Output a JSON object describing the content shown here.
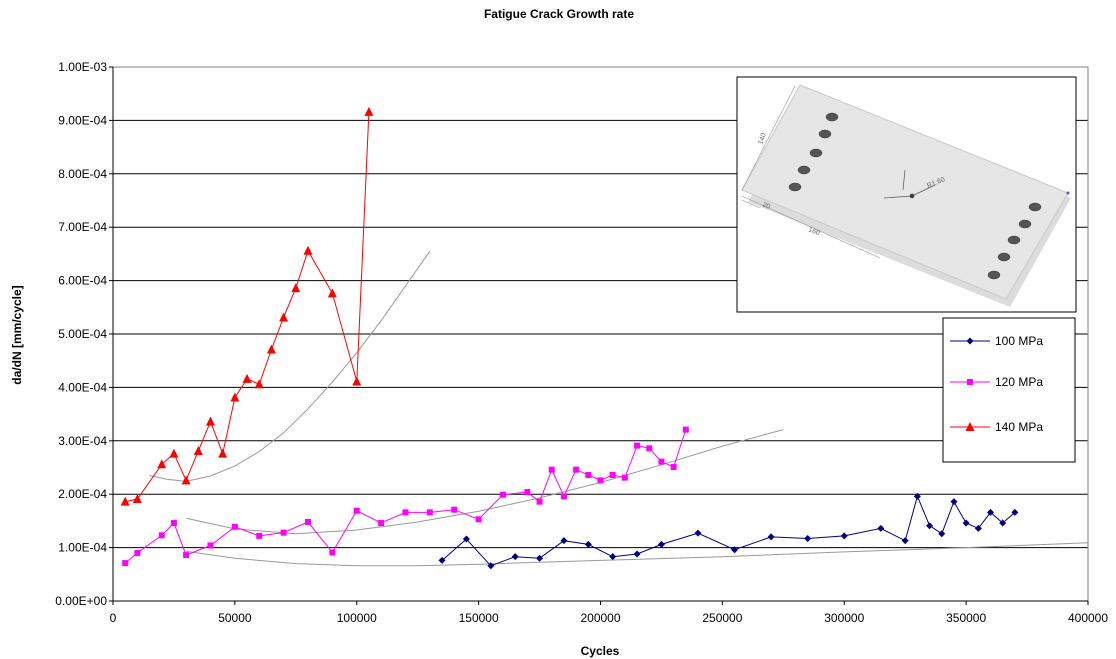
{
  "chart_data": {
    "type": "line",
    "title": "Fatigue Crack Growth rate",
    "xlabel": "Cycles",
    "ylabel": "da/dN [mm/cycle]",
    "xlim": [
      0,
      400000
    ],
    "ylim": [
      0,
      0.001
    ],
    "x_ticks": [
      0,
      50000,
      100000,
      150000,
      200000,
      250000,
      300000,
      350000,
      400000
    ],
    "x_tick_labels": [
      "0",
      "50000",
      "100000",
      "150000",
      "200000",
      "250000",
      "300000",
      "350000",
      "400000"
    ],
    "y_ticks": [
      0,
      0.0001,
      0.0002,
      0.0003,
      0.0004,
      0.0005,
      0.0006,
      0.0007,
      0.0008,
      0.0009,
      0.001
    ],
    "y_tick_labels": [
      "0.00E+00",
      "1.00E-04",
      "2.00E-04",
      "3.00E-04",
      "4.00E-04",
      "5.00E-04",
      "6.00E-04",
      "7.00E-04",
      "8.00E-04",
      "9.00E-04",
      "1.00E-03"
    ],
    "grid": "horizontal",
    "legend_position": "right",
    "series": [
      {
        "name": "100 MPa",
        "color": "#000080",
        "marker": "diamond",
        "points": [
          [
            135000,
            7.6e-05
          ],
          [
            145000,
            0.000116
          ],
          [
            155000,
            6.6e-05
          ],
          [
            165000,
            8.3e-05
          ],
          [
            175000,
            8e-05
          ],
          [
            185000,
            0.000113
          ],
          [
            195000,
            0.000106
          ],
          [
            205000,
            8.3e-05
          ],
          [
            215000,
            8.8e-05
          ],
          [
            225000,
            0.000106
          ],
          [
            240000,
            0.000127
          ],
          [
            255000,
            9.6e-05
          ],
          [
            270000,
            0.00012
          ],
          [
            285000,
            0.000117
          ],
          [
            300000,
            0.000122
          ],
          [
            315000,
            0.000136
          ],
          [
            325000,
            0.000113
          ],
          [
            330000,
            0.000196
          ],
          [
            335000,
            0.000141
          ],
          [
            340000,
            0.000126
          ],
          [
            345000,
            0.000186
          ],
          [
            350000,
            0.000146
          ],
          [
            355000,
            0.000136
          ],
          [
            360000,
            0.000166
          ],
          [
            365000,
            0.000146
          ],
          [
            370000,
            0.000166
          ]
        ]
      },
      {
        "name": "120 MPa",
        "color": "#ff00ff",
        "marker": "square",
        "points": [
          [
            5000,
            7.1e-05
          ],
          [
            10000,
            9e-05
          ],
          [
            20000,
            0.000123
          ],
          [
            25000,
            0.000146
          ],
          [
            30000,
            8.6e-05
          ],
          [
            40000,
            0.000104
          ],
          [
            50000,
            0.000139
          ],
          [
            60000,
            0.000122
          ],
          [
            70000,
            0.000128
          ],
          [
            80000,
            0.000148
          ],
          [
            90000,
            9.1e-05
          ],
          [
            100000,
            0.000169
          ],
          [
            110000,
            0.000146
          ],
          [
            120000,
            0.000166
          ],
          [
            130000,
            0.000166
          ],
          [
            140000,
            0.000171
          ],
          [
            150000,
            0.000153
          ],
          [
            160000,
            0.000199
          ],
          [
            170000,
            0.000204
          ],
          [
            175000,
            0.000186
          ],
          [
            180000,
            0.000246
          ],
          [
            185000,
            0.000196
          ],
          [
            190000,
            0.000246
          ],
          [
            195000,
            0.000236
          ],
          [
            200000,
            0.000226
          ],
          [
            205000,
            0.000236
          ],
          [
            210000,
            0.000231
          ],
          [
            215000,
            0.000291
          ],
          [
            220000,
            0.000286
          ],
          [
            225000,
            0.000261
          ],
          [
            230000,
            0.000251
          ],
          [
            235000,
            0.000321
          ]
        ]
      },
      {
        "name": "140 MPa",
        "color": "#ff0000",
        "marker": "triangle",
        "points": [
          [
            5000,
            0.000186
          ],
          [
            10000,
            0.000191
          ],
          [
            20000,
            0.000256
          ],
          [
            25000,
            0.000276
          ],
          [
            30000,
            0.000226
          ],
          [
            35000,
            0.000281
          ],
          [
            40000,
            0.000336
          ],
          [
            45000,
            0.000276
          ],
          [
            50000,
            0.000381
          ],
          [
            55000,
            0.000416
          ],
          [
            60000,
            0.000406
          ],
          [
            65000,
            0.000471
          ],
          [
            70000,
            0.000531
          ],
          [
            75000,
            0.000586
          ],
          [
            80000,
            0.000656
          ],
          [
            90000,
            0.000576
          ],
          [
            100000,
            0.000411
          ],
          [
            105000,
            0.000916
          ]
        ]
      }
    ],
    "trendlines": [
      {
        "color": "#999999",
        "points": [
          [
            15000,
            0.000235
          ],
          [
            22000,
            0.000228
          ],
          [
            30000,
            0.000224
          ],
          [
            40000,
            0.000234
          ],
          [
            50000,
            0.000253
          ],
          [
            60000,
            0.00028
          ],
          [
            70000,
            0.000315
          ],
          [
            80000,
            0.00036
          ],
          [
            90000,
            0.00041
          ],
          [
            100000,
            0.000465
          ],
          [
            110000,
            0.000525
          ],
          [
            120000,
            0.00059
          ],
          [
            130000,
            0.000655
          ]
        ]
      },
      {
        "color": "#999999",
        "points": [
          [
            30000,
            0.000155
          ],
          [
            50000,
            0.000135
          ],
          [
            75000,
            0.000126
          ],
          [
            100000,
            0.000133
          ],
          [
            125000,
            0.000148
          ],
          [
            150000,
            0.000168
          ],
          [
            175000,
            0.000193
          ],
          [
            200000,
            0.000222
          ],
          [
            225000,
            0.000255
          ],
          [
            250000,
            0.00029
          ],
          [
            275000,
            0.000321
          ]
        ]
      },
      {
        "color": "#999999",
        "points": [
          [
            30000,
            9.3e-05
          ],
          [
            50000,
            8e-05
          ],
          [
            75000,
            7e-05
          ],
          [
            100000,
            6.6e-05
          ],
          [
            125000,
            6.6e-05
          ],
          [
            150000,
            6.9e-05
          ],
          [
            200000,
            7.6e-05
          ],
          [
            250000,
            8.3e-05
          ],
          [
            300000,
            9.2e-05
          ],
          [
            350000,
            0.0001
          ],
          [
            400000,
            0.000109
          ]
        ]
      }
    ],
    "inset_image": {
      "labels": [
        "140",
        "20",
        "160",
        "R1.60"
      ]
    }
  }
}
